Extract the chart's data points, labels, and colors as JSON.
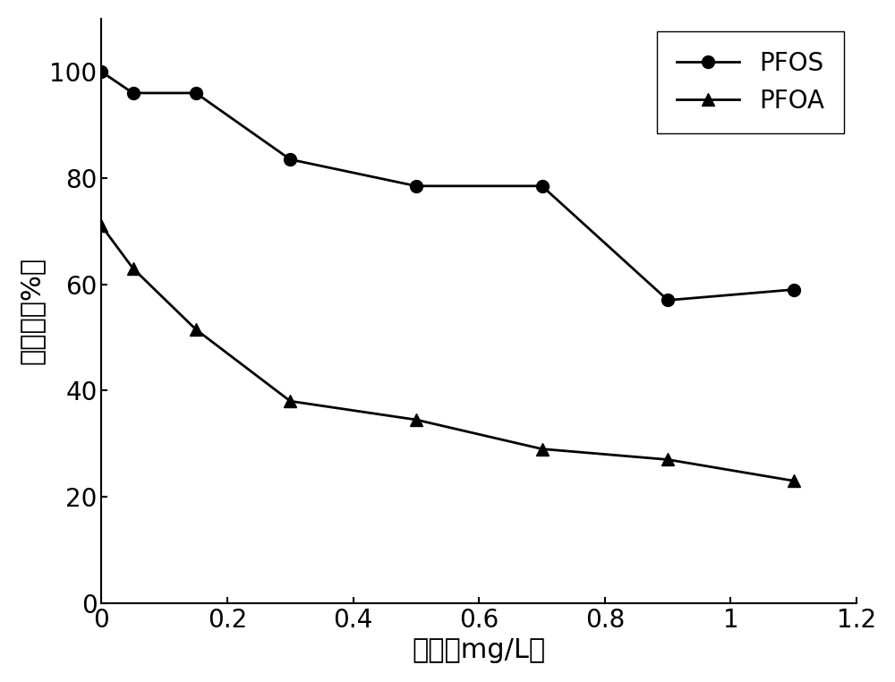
{
  "pfos_x": [
    0.0,
    0.05,
    0.15,
    0.3,
    0.5,
    0.7,
    0.9,
    1.1
  ],
  "pfos_y": [
    100,
    96,
    96,
    83.5,
    78.5,
    78.5,
    57,
    59
  ],
  "pfoa_x": [
    0.0,
    0.05,
    0.15,
    0.3,
    0.5,
    0.7,
    0.9,
    1.1
  ],
  "pfoa_y": [
    71,
    63,
    51.5,
    38,
    34.5,
    29,
    27,
    23
  ],
  "xlabel": "浓度（mg/L）",
  "ylabel": "去除率（%）",
  "xlim": [
    0,
    1.2
  ],
  "ylim": [
    0,
    110
  ],
  "yticks": [
    0,
    20,
    40,
    60,
    80,
    100
  ],
  "xticks": [
    0.0,
    0.2,
    0.4,
    0.6,
    0.8,
    1.0,
    1.2
  ],
  "xtick_labels": [
    "0",
    "0.2",
    "0.4",
    "0.6",
    "0.8",
    "1",
    "1.2"
  ],
  "legend_pfos": "PFOS",
  "legend_pfoa": "PFOA",
  "line_color": "#000000",
  "marker_pfos": "o",
  "marker_pfoa": "^",
  "marker_size": 10,
  "line_width": 2.0,
  "xlabel_fontsize": 22,
  "ylabel_fontsize": 22,
  "tick_fontsize": 20,
  "legend_fontsize": 20
}
